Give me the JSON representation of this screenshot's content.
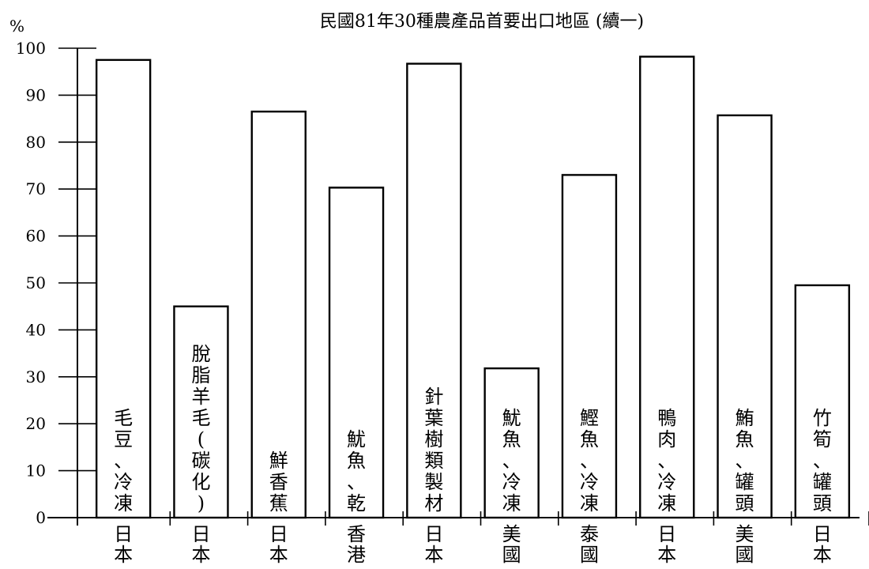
{
  "chart_data": {
    "type": "bar",
    "title": "民國81年30種農產品首要出口地區 (續一)",
    "ylabel": "%",
    "ylim": [
      0,
      100
    ],
    "yticks": [
      0,
      10,
      20,
      30,
      40,
      50,
      60,
      70,
      80,
      90,
      100
    ],
    "grid": false,
    "bar_fill": "#ffffff",
    "bar_stroke": "#000000",
    "categories": [
      {
        "product": "毛豆、冷凍",
        "region": "日本"
      },
      {
        "product": "脫脂羊毛(碳化)",
        "region": "日本"
      },
      {
        "product": "鮮香蕉",
        "region": "日本"
      },
      {
        "product": "魷魚、乾",
        "region": "香港"
      },
      {
        "product": "針葉樹類製材",
        "region": "日本"
      },
      {
        "product": "魷魚、冷凍",
        "region": "美國"
      },
      {
        "product": "鰹魚、冷凍",
        "region": "泰國"
      },
      {
        "product": "鴨肉、冷凍",
        "region": "日本"
      },
      {
        "product": "鮪魚、罐頭",
        "region": "美國"
      },
      {
        "product": "竹筍、罐頭",
        "region": "日本"
      }
    ],
    "values": [
      97.5,
      45,
      86.5,
      70.3,
      96.7,
      31.8,
      73,
      98.2,
      85.7,
      49.5
    ]
  }
}
